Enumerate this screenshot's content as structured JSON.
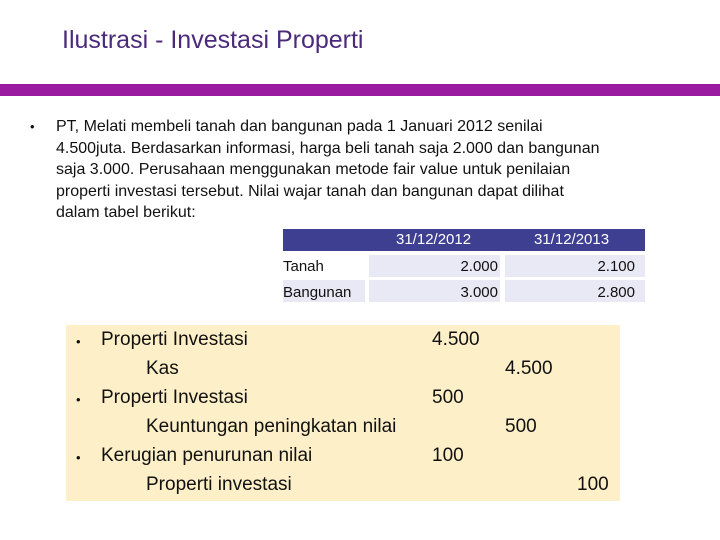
{
  "slide": {
    "title": "Ilustrasi - Investasi Properti",
    "accent_color": "#9a1aa0",
    "title_color": "#4b2a7b"
  },
  "intro": {
    "lines": [
      "PT, Melati membeli tanah dan bangunan pada 1 Januari 2012 senilai",
      "4.500juta.  Berdasarkan informasi, harga beli tanah saja 2.000 dan bangunan",
      "saja 3.000. Perusahaan menggunakan metode fair value untuk penilaian",
      "properti investasi tersebut. Nilai wajar tanah dan bangunan dapat dilihat",
      "dalam tabel berikut:"
    ]
  },
  "table": {
    "header_color": "#3f3f92",
    "columns": [
      "31/12/2012",
      "31/12/2013"
    ],
    "rows": [
      {
        "label": "Tanah",
        "values": [
          "2.000",
          "2.100"
        ]
      },
      {
        "label": "Bangunan",
        "values": [
          "3.000",
          "2.800"
        ]
      }
    ]
  },
  "journal": {
    "background": "#fdefc8",
    "entries": [
      {
        "debit_account": "Properti Investasi",
        "debit": "4.500",
        "credit_account": "Kas",
        "credit": "4.500"
      },
      {
        "debit_account": "Properti Investasi",
        "debit": "500",
        "credit_account": "Keuntungan peningkatan nilai",
        "credit": "500"
      },
      {
        "debit_account": "Kerugian penurunan nilai",
        "debit": "100",
        "credit_account": "Properti investasi",
        "credit": "100"
      }
    ]
  }
}
